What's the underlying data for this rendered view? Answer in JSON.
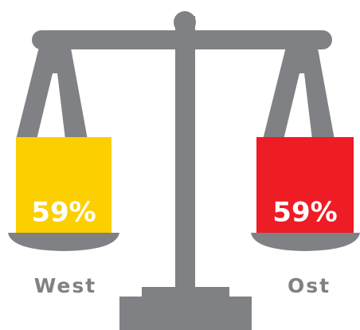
{
  "items": [
    {
      "label": "West",
      "value": "59%",
      "color": "#fccf00"
    },
    {
      "label": "Ost",
      "value": "59%",
      "color": "#ee1c25"
    }
  ]
}
